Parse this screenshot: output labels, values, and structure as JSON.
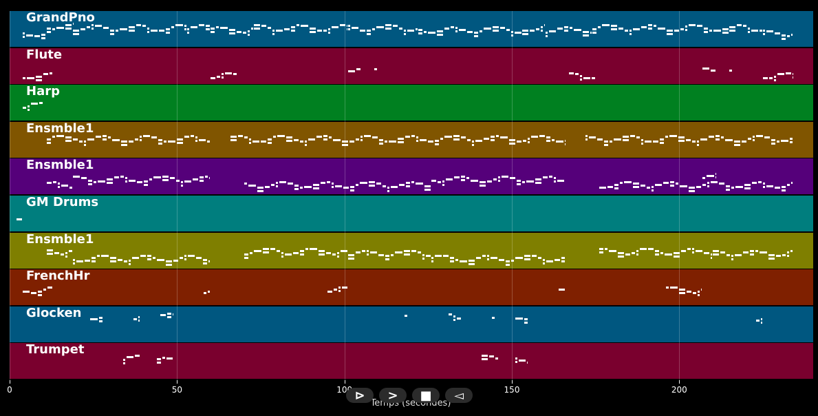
{
  "xaxis": {
    "label": "Temps (secondes)",
    "ticks": [
      {
        "value": 0,
        "label": "0"
      },
      {
        "value": 50,
        "label": "50"
      },
      {
        "value": 100,
        "label": "100"
      },
      {
        "value": 150,
        "label": "150"
      },
      {
        "value": 200,
        "label": "200"
      }
    ],
    "range": [
      0,
      240
    ]
  },
  "tracks": [
    {
      "name": "GrandPno",
      "color": "#005780",
      "segments": [
        [
          4,
          11,
          0.6
        ],
        [
          11,
          19,
          0.4
        ],
        [
          19,
          53,
          0.45
        ],
        [
          53,
          60,
          0.45
        ],
        [
          60,
          73,
          0.5
        ],
        [
          73,
          101,
          0.45
        ],
        [
          101,
          122,
          0.45
        ],
        [
          122,
          153,
          0.5
        ],
        [
          153,
          160,
          0.45
        ],
        [
          160,
          174,
          0.5
        ],
        [
          174,
          215,
          0.45
        ],
        [
          215,
          225,
          0.45
        ],
        [
          225,
          234,
          0.6
        ]
      ]
    },
    {
      "name": "Flute",
      "color": "#7a002e",
      "segments": [
        [
          4,
          13,
          0.75
        ],
        [
          60,
          68,
          0.75
        ],
        [
          101,
          105,
          0.6
        ],
        [
          109,
          110,
          0.6
        ],
        [
          167,
          175,
          0.75
        ],
        [
          207,
          211,
          0.6
        ],
        [
          215,
          216,
          0.6
        ],
        [
          225,
          234,
          0.75
        ]
      ]
    },
    {
      "name": "Harp",
      "color": "#008020",
      "segments": [
        [
          4,
          10,
          0.55
        ]
      ]
    },
    {
      "name": "Ensmble1",
      "color": "#805500",
      "segments": [
        [
          11,
          60,
          0.45
        ],
        [
          66,
          166,
          0.45
        ],
        [
          172,
          234,
          0.45
        ]
      ]
    },
    {
      "name": "Ensmble1",
      "color": "#55007a",
      "segments": [
        [
          11,
          19,
          0.7
        ],
        [
          19,
          60,
          0.55
        ],
        [
          70,
          126,
          0.7
        ],
        [
          126,
          166,
          0.55
        ],
        [
          176,
          234,
          0.7
        ],
        [
          207,
          211,
          0.45
        ]
      ]
    },
    {
      "name": "GM Drums",
      "color": "#007e7e",
      "segments": [
        [
          2,
          4,
          0.7
        ]
      ]
    },
    {
      "name": "Ensmble1",
      "color": "#7f7f00",
      "segments": [
        [
          11,
          19,
          0.5
        ],
        [
          19,
          60,
          0.7
        ],
        [
          70,
          101,
          0.5
        ],
        [
          101,
          126,
          0.55
        ],
        [
          126,
          166,
          0.7
        ],
        [
          176,
          210,
          0.5
        ],
        [
          210,
          234,
          0.55
        ]
      ]
    },
    {
      "name": "FrenchHr",
      "color": "#7f2000",
      "segments": [
        [
          4,
          13,
          0.55
        ],
        [
          58,
          60,
          0.55
        ],
        [
          95,
          101,
          0.55
        ],
        [
          164,
          166,
          0.55
        ],
        [
          196,
          207,
          0.55
        ]
      ]
    },
    {
      "name": "Glocken",
      "color": "#005780",
      "segments": [
        [
          24,
          28,
          0.25
        ],
        [
          37,
          39,
          0.3
        ],
        [
          45,
          49,
          0.25
        ],
        [
          118,
          119,
          0.3
        ],
        [
          131,
          135,
          0.25
        ],
        [
          144,
          145,
          0.3
        ],
        [
          151,
          155,
          0.25
        ],
        [
          223,
          225,
          0.3
        ]
      ]
    },
    {
      "name": "Trumpet",
      "color": "#7a002e",
      "segments": [
        [
          34,
          39,
          0.4
        ],
        [
          44,
          49,
          0.45
        ],
        [
          141,
          146,
          0.4
        ],
        [
          151,
          155,
          0.45
        ]
      ]
    }
  ],
  "controls": {
    "play_label": "⊳",
    "next_label": ">",
    "stop_label": "■",
    "back_label": "◅"
  }
}
